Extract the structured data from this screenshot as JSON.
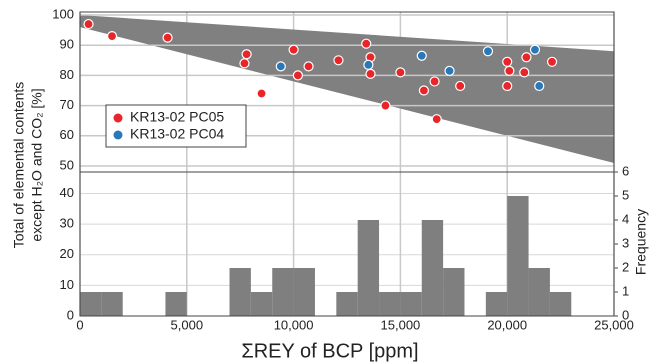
{
  "chart_data": [
    {
      "type": "scatter",
      "ylabel": [
        "Total of elemental contents",
        "except H₂O and CO₂ [%]"
      ],
      "xlim": [
        0,
        25000
      ],
      "ylim": [
        48,
        101
      ],
      "yticks": [
        50,
        60,
        70,
        80,
        90,
        100
      ],
      "grid": true,
      "legend": "left",
      "band": {
        "color": "#808080",
        "x": [
          0,
          25000
        ],
        "upper": [
          100,
          88
        ],
        "lower": [
          96,
          51
        ]
      },
      "series": [
        {
          "name": "KR13-02 PC05",
          "color": "#e8262a",
          "x": [
            400,
            1500,
            4100,
            7700,
            7800,
            8500,
            10000,
            10200,
            10700,
            12100,
            13400,
            13600,
            13600,
            14300,
            15000,
            16100,
            16600,
            16700,
            17800,
            20000,
            20100,
            20000,
            20800,
            20900,
            22100
          ],
          "values": [
            97,
            93,
            92.5,
            84,
            87,
            74,
            88.5,
            80,
            83,
            85,
            90.5,
            86,
            80.5,
            70,
            81,
            75,
            78,
            65.5,
            76.5,
            84.5,
            81.5,
            76.5,
            81,
            86,
            84.5
          ]
        },
        {
          "name": "KR13-02 PC04",
          "color": "#2a78b8",
          "x": [
            9400,
            13500,
            16000,
            17300,
            19100,
            21300,
            21500
          ],
          "values": [
            83,
            83.5,
            86.5,
            81.5,
            88,
            88.5,
            76.5
          ]
        }
      ]
    },
    {
      "type": "histogram",
      "xlabel": "ΣREY of BCP [ppm]",
      "xlim": [
        0,
        25000
      ],
      "xticks": [
        0,
        {
          "value": 5000,
          "label": "5,000"
        },
        {
          "value": 10000,
          "label": "10,000"
        },
        {
          "value": 15000,
          "label": "15,000"
        },
        {
          "value": 20000,
          "label": "20,000"
        },
        {
          "value": 25000,
          "label": "25,000"
        }
      ],
      "ylim": [
        0,
        47
      ],
      "yticks": [
        0,
        10,
        20,
        30,
        40
      ],
      "y2label": "Frequency",
      "y2lim": [
        0,
        6
      ],
      "y2ticks": [
        0,
        1,
        2,
        3,
        4,
        5,
        6
      ],
      "grid": true,
      "series": [
        {
          "axis": "y2",
          "color": "#7f7f7f",
          "bins": [
            0,
            1000,
            2000,
            3000,
            4000,
            5000,
            6000,
            7000,
            8000,
            9000,
            10000,
            11000,
            12000,
            13000,
            14000,
            15000,
            16000,
            17000,
            18000,
            19000,
            20000,
            21000,
            22000,
            23000,
            24000,
            25000
          ],
          "counts": [
            1,
            1,
            0,
            0,
            1,
            0,
            0,
            2,
            1,
            2,
            2,
            0,
            1,
            4,
            1,
            1,
            4,
            2,
            0,
            1,
            5,
            2,
            1,
            0,
            0
          ]
        }
      ]
    }
  ]
}
